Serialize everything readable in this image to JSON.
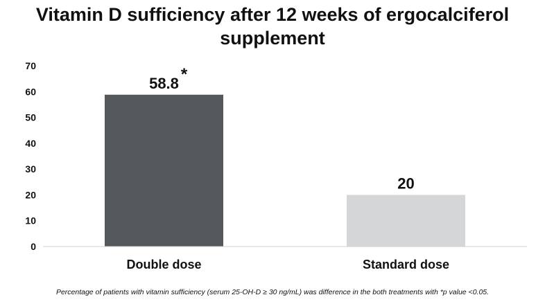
{
  "chart_data": {
    "type": "bar",
    "title": "Vitamin D sufficiency after 12 weeks of ergocalciferol supplement",
    "categories": [
      "Double dose",
      "Standard dose"
    ],
    "values": [
      58.8,
      20
    ],
    "value_labels": [
      "58.8",
      "20"
    ],
    "significance_marks": [
      "*",
      ""
    ],
    "colors": [
      "#55585a",
      "#d5d6d8"
    ],
    "ylim": [
      0,
      70
    ],
    "yticks": [
      0,
      10,
      20,
      30,
      40,
      50,
      60,
      70
    ],
    "grid": false,
    "xlabel": "",
    "ylabel": ""
  },
  "footnote": "Percentage of patients with vitamin sufficiency (serum 25-OH-D ≥ 30 ng/mL) was difference in the both treatments with *p value <0.05."
}
